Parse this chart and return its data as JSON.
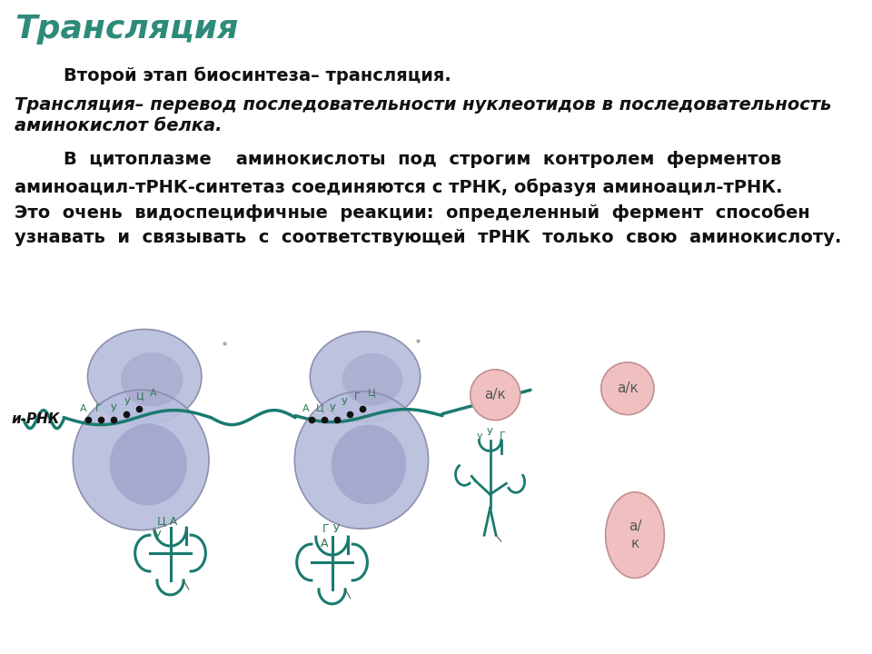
{
  "title": "Трансляция",
  "title_color": "#2e8b7a",
  "title_fontsize": 26,
  "bg_color": "#ffffff",
  "ribosome_color": "#b8bedd",
  "ribosome_edge": "#8888aa",
  "mrna_color": "#1a7a6e",
  "trna_color": "#1a7a6e",
  "ak_color": "#f0c0c0",
  "ak_edge": "#c09090",
  "label_color": "#2e7a50",
  "dot_color": "#111111",
  "text_color": "#111111",
  "text_lines": [
    {
      "text": "        Второй этап биосинтеза– трансляция.",
      "style": "normal",
      "weight": "bold",
      "size": 14
    },
    {
      "text": "Трансляция– перевод последовательности нуклеотидов в последовательность",
      "style": "italic",
      "weight": "bold",
      "size": 14
    },
    {
      "text": "аминокислот белка.",
      "style": "italic",
      "weight": "bold",
      "size": 14
    },
    {
      "text": "        В  цитоплазме    аминокислоты  под  строгим  контролем  ферментов",
      "style": "normal",
      "weight": "bold",
      "size": 14
    },
    {
      "text": "аминоацил-тРНК-синтетаз соединяются с тРНК, образуя аминоацил-тРНК.",
      "style": "normal",
      "weight": "bold",
      "size": 14
    },
    {
      "text": "Это  очень  видоспецифичные  реакции:  определенный  фермент  способен",
      "style": "normal",
      "weight": "bold",
      "size": 14
    },
    {
      "text": "узнавать  и  связывать  с  соответствующей  тРНК  только  свою  аминокислоту.",
      "style": "normal",
      "weight": "bold",
      "size": 14
    }
  ]
}
